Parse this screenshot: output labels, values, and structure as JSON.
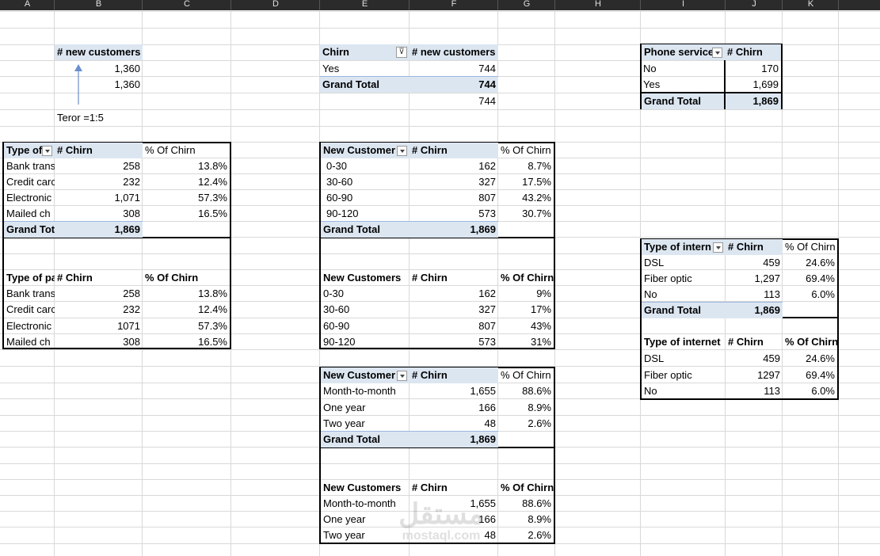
{
  "columns": [
    "A",
    "B",
    "C",
    "D",
    "E",
    "F",
    "G",
    "H",
    "I",
    "J",
    "K"
  ],
  "block1": {
    "header": "# new customers",
    "v1": "1,360",
    "v2": "1,360",
    "note": "Teror =1:5"
  },
  "pivot_chirn": {
    "h1": "Chirn",
    "h2": "# new customers",
    "row_label": "Yes",
    "row_value": "744",
    "total_label": "Grand Total",
    "total_value": "744",
    "extra": "744"
  },
  "pivot_phone": {
    "h1": "Phone service",
    "h2": "# Chirn",
    "rows": [
      [
        "No",
        "170"
      ],
      [
        "Yes",
        "1,699"
      ]
    ],
    "total_label": "Grand Total",
    "total_value": "1,869"
  },
  "pivot_payment": {
    "h1": "Type of",
    "h2": "# Chirn",
    "h3": "% Of Chirn",
    "rows": [
      [
        "Bank trans",
        "258",
        "13.8%"
      ],
      [
        "Credit carc",
        "232",
        "12.4%"
      ],
      [
        "Electronic",
        "1,071",
        "57.3%"
      ],
      [
        "Mailed ch",
        "308",
        "16.5%"
      ]
    ],
    "total_label": "Grand Tot",
    "total_value": "1,869"
  },
  "table_payment": {
    "h1": "Type of pa",
    "h2": "# Chirn",
    "h3": "% Of Chirn",
    "rows": [
      [
        "Bank trans",
        "258",
        "13.8%"
      ],
      [
        "Credit carc",
        "232",
        "12.4%"
      ],
      [
        "Electronic",
        "1071",
        "57.3%"
      ],
      [
        "Mailed ch",
        "308",
        "16.5%"
      ]
    ]
  },
  "pivot_newcust": {
    "h1": "New Customer",
    "h2": "# Chirn",
    "h3": "% Of Chirn",
    "rows": [
      [
        "0-30",
        "162",
        "8.7%"
      ],
      [
        "30-60",
        "327",
        "17.5%"
      ],
      [
        "60-90",
        "807",
        "43.2%"
      ],
      [
        "90-120",
        "573",
        "30.7%"
      ]
    ],
    "total_label": "Grand Total",
    "total_value": "1,869"
  },
  "table_newcust": {
    "h1": "New Customers",
    "h2": "# Chirn",
    "h3": "% Of Chirn",
    "rows": [
      [
        "0-30",
        "162",
        "9%"
      ],
      [
        "30-60",
        "327",
        "17%"
      ],
      [
        "60-90",
        "807",
        "43%"
      ],
      [
        "90-120",
        "573",
        "31%"
      ]
    ]
  },
  "pivot_contract": {
    "h1": "New Customer",
    "h2": "# Chirn",
    "h3": "% Of Chirn",
    "rows": [
      [
        "Month-to-month",
        "1,655",
        "88.6%"
      ],
      [
        "One year",
        "166",
        "8.9%"
      ],
      [
        "Two year",
        "48",
        "2.6%"
      ]
    ],
    "total_label": "Grand Total",
    "total_value": "1,869"
  },
  "table_contract": {
    "h1": "New Customers",
    "h2": "# Chirn",
    "h3": "% Of Chirn",
    "rows": [
      [
        "Month-to-month",
        "1,655",
        "88.6%"
      ],
      [
        "One year",
        "166",
        "8.9%"
      ],
      [
        "Two year",
        "48",
        "2.6%"
      ]
    ]
  },
  "pivot_internet": {
    "h1": "Type of intern",
    "h2": "# Chirn",
    "h3": "% Of Chirn",
    "rows": [
      [
        "DSL",
        "459",
        "24.6%"
      ],
      [
        "Fiber optic",
        "1,297",
        "69.4%"
      ],
      [
        "No",
        "113",
        "6.0%"
      ]
    ],
    "total_label": "Grand Total",
    "total_value": "1,869"
  },
  "table_internet": {
    "h1": "Type of internet",
    "h2": "# Chirn",
    "h3": "% Of Chirn",
    "rows": [
      [
        "DSL",
        "459",
        "24.6%"
      ],
      [
        "Fiber optic",
        "1297",
        "69.4%"
      ],
      [
        "No",
        "113",
        "6.0%"
      ]
    ]
  },
  "watermark": {
    "arabic": "مستقل",
    "latin": "mostaql.com"
  },
  "colors": {
    "pivot_header": "#dce6f1",
    "arrow": "#6a8fcf",
    "grid": "#d9d9d9"
  }
}
